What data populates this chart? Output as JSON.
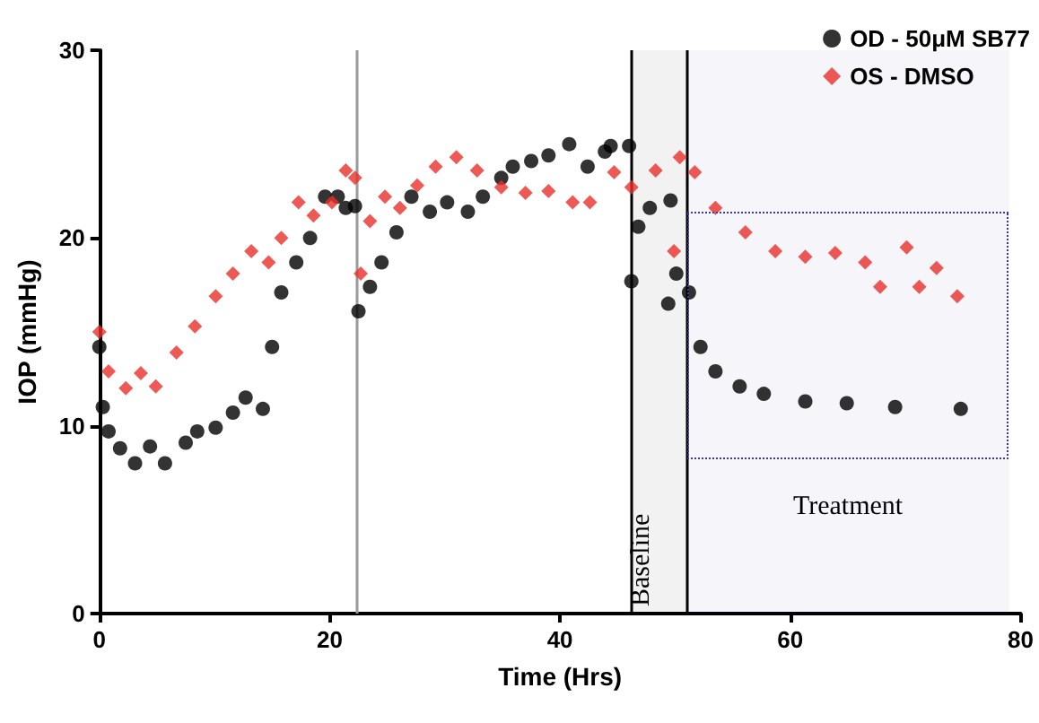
{
  "chart_data": {
    "type": "scatter",
    "xlabel": "Time (Hrs)",
    "ylabel": "IOP (mmHg)",
    "xlim": [
      0,
      80
    ],
    "xticks": [
      0,
      20,
      40,
      60,
      80
    ],
    "ylim": [
      0,
      30
    ],
    "yticks": [
      0,
      10,
      20,
      30
    ],
    "grid": false,
    "legend": "top right",
    "series": [
      {
        "name": "OD - 50μM SB77",
        "color": "#000000",
        "marker": "circle",
        "x": [
          0,
          0.3,
          0.8,
          1.8,
          3.1,
          4.4,
          5.7,
          7.5,
          8.5,
          10.1,
          11.6,
          12.7,
          14.2,
          15,
          15.8,
          17.1,
          18.3,
          19.6,
          20.7,
          21.4,
          22.2,
          22.5,
          23.5,
          24.5,
          25.8,
          27.1,
          28.7,
          30.2,
          32,
          33.3,
          34.9,
          35.9,
          37.5,
          39,
          40.8,
          42.4,
          43.9,
          44.4,
          46,
          46.2,
          46.8,
          47.8,
          49.4,
          49.6,
          50.1,
          51.2,
          52.2,
          53.5,
          55.6,
          57.7,
          61.3,
          64.9,
          69.1,
          74.8
        ],
        "values": [
          14.2,
          11,
          9.7,
          8.8,
          8,
          8.9,
          8,
          9.1,
          9.7,
          9.9,
          10.7,
          11.5,
          10.9,
          14.2,
          17.1,
          18.7,
          20,
          22.2,
          22.2,
          21.6,
          21.7,
          16.1,
          17.4,
          18.7,
          20.3,
          22.2,
          21.4,
          21.9,
          21.4,
          22.2,
          23.2,
          23.8,
          24.1,
          24.4,
          25,
          23.8,
          24.6,
          24.9,
          24.9,
          17.7,
          20.6,
          21.6,
          16.5,
          22,
          18.1,
          17.1,
          14.2,
          12.9,
          12.1,
          11.7,
          11.3,
          11.2,
          11,
          10.9
        ]
      },
      {
        "name": "OS - DMSO",
        "color": "#e8302a",
        "marker": "diamond",
        "x": [
          0,
          0.8,
          2.3,
          3.6,
          4.9,
          6.7,
          8.3,
          10.1,
          11.6,
          13.2,
          14.7,
          15.8,
          17.3,
          18.6,
          20.2,
          21.4,
          22.2,
          22.7,
          23.5,
          24.8,
          26.1,
          27.6,
          29.2,
          31,
          32.8,
          34.9,
          37,
          39,
          41.1,
          42.6,
          44.7,
          46.2,
          48.3,
          49.9,
          50.4,
          51.7,
          53.5,
          56.1,
          58.7,
          61.3,
          63.9,
          66.5,
          67.8,
          70.1,
          71.2,
          72.7,
          74.5
        ],
        "values": [
          15,
          12.9,
          12,
          12.8,
          12.1,
          13.9,
          15.3,
          16.9,
          18.1,
          19.3,
          18.7,
          20,
          21.9,
          21.2,
          21.9,
          23.6,
          23.2,
          18.1,
          20.9,
          22.2,
          21.6,
          22.8,
          23.8,
          24.3,
          23.6,
          22.7,
          22.4,
          22.5,
          21.9,
          21.9,
          23.5,
          22.7,
          23.6,
          19.3,
          24.3,
          23.5,
          21.6,
          20.3,
          19.3,
          19,
          19.2,
          18.7,
          17.4,
          19.5,
          17.4,
          18.4,
          16.9
        ]
      }
    ],
    "ref_lines": [
      {
        "axis": "x",
        "value": 22.4,
        "color": "#999999"
      },
      {
        "axis": "x",
        "value": 46.2,
        "color": "#000000"
      },
      {
        "axis": "x",
        "value": 51,
        "color": "#000000"
      }
    ],
    "bands": [
      {
        "axis": "x",
        "from": 46.2,
        "to": 51,
        "label": "Baseline"
      },
      {
        "axis": "x",
        "from": 51,
        "to": 79,
        "label": "Treatment",
        "color": "#3a3a9a"
      }
    ]
  }
}
